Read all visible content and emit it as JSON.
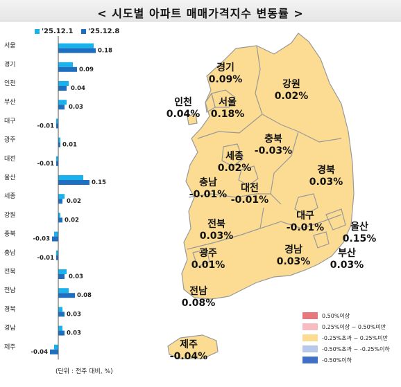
{
  "title": "< 시도별 아파트 매매가격지수 변동률 >",
  "unit_note": "(단위 : 전주 대비, %)",
  "colors": {
    "series1": "#1ab2ec",
    "series2": "#1f6fc0",
    "map_fill": "#fbdc92",
    "map_stroke": "#999999"
  },
  "chart_data": {
    "type": "bar",
    "orientation": "horizontal",
    "categories": [
      "서울",
      "경기",
      "인천",
      "부산",
      "대구",
      "광주",
      "대전",
      "울산",
      "세종",
      "강원",
      "충북",
      "충남",
      "전북",
      "전남",
      "경북",
      "경남",
      "제주"
    ],
    "series": [
      {
        "name": "'25.12.1",
        "values": [
          0.17,
          0.07,
          0.05,
          0.04,
          -0.01,
          0.01,
          -0.01,
          0.12,
          0.03,
          0.01,
          -0.02,
          -0.01,
          0.04,
          0.05,
          0.02,
          0.02,
          -0.02
        ]
      },
      {
        "name": "'25.12.8",
        "values": [
          0.18,
          0.09,
          0.04,
          0.03,
          -0.01,
          0.01,
          -0.01,
          0.15,
          0.02,
          0.02,
          -0.03,
          -0.01,
          0.03,
          0.08,
          0.03,
          0.03,
          -0.04
        ]
      }
    ],
    "value_labels": [
      "0.18",
      "0.09",
      "0.04",
      "0.03",
      "-0.01",
      "0.01",
      "-0.01",
      "0.15",
      "0.02",
      "0.02",
      "-0.03",
      "-0.01",
      "0.03",
      "0.08",
      "0.03",
      "0.03",
      "-0.04"
    ]
  },
  "map": {
    "regions": [
      {
        "name": "경기",
        "value": "0.09%"
      },
      {
        "name": "서울",
        "value": "0.18%"
      },
      {
        "name": "인천",
        "value": "0.04%"
      },
      {
        "name": "강원",
        "value": "0.02%"
      },
      {
        "name": "충북",
        "value": "-0.03%"
      },
      {
        "name": "세종",
        "value": "0.02%"
      },
      {
        "name": "충남",
        "value": "-0.01%"
      },
      {
        "name": "대전",
        "value": "-0.01%"
      },
      {
        "name": "경북",
        "value": "0.03%"
      },
      {
        "name": "전북",
        "value": "0.03%"
      },
      {
        "name": "대구",
        "value": "-0.01%"
      },
      {
        "name": "울산",
        "value": "0.15%"
      },
      {
        "name": "광주",
        "value": "0.01%"
      },
      {
        "name": "경남",
        "value": "0.03%"
      },
      {
        "name": "부산",
        "value": "0.03%"
      },
      {
        "name": "전남",
        "value": "0.08%"
      },
      {
        "name": "제주",
        "value": "-0.04%"
      }
    ],
    "legend": [
      {
        "label": "0.50%이상",
        "color": "#e8767d"
      },
      {
        "label": "0.25%이상 ~ 0.50%미만",
        "color": "#f6bcc2"
      },
      {
        "label": "-0.25%초과 ~ 0.25%미만",
        "color": "#fbdc92"
      },
      {
        "label": "-0.50%초과 ~ -0.25%이하",
        "color": "#b8c8ea"
      },
      {
        "label": "-0.50%이하",
        "color": "#3f6fc6"
      }
    ]
  }
}
